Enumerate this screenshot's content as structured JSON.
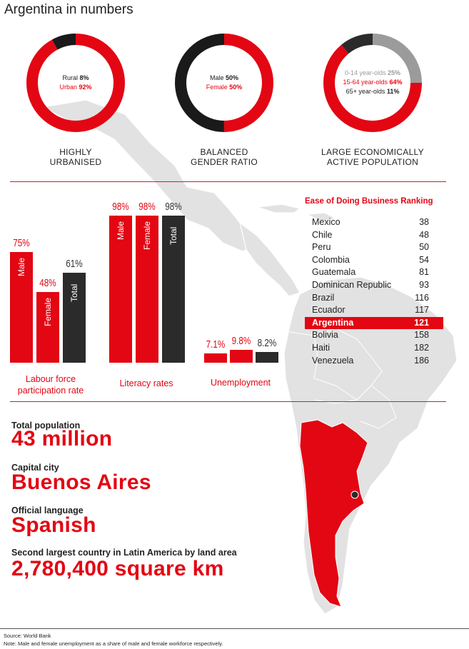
{
  "title": "Argentina in numbers",
  "colors": {
    "red": "#e30613",
    "dark": "#2b2b2b",
    "grey": "#9b9b9b",
    "map": "#e2e2e2"
  },
  "donuts": [
    {
      "caption_l1": "HIGHLY",
      "caption_l2": "URBANISED",
      "lines": [
        {
          "label": "Rural",
          "value": "8%",
          "color": "#222222"
        },
        {
          "label": "Urban",
          "value": "92%",
          "color": "#e30613"
        }
      ],
      "segments": [
        {
          "name": "Urban",
          "share": 0.92,
          "color": "#e30613"
        },
        {
          "name": "Rural",
          "share": 0.08,
          "color": "#1a1a1a"
        }
      ]
    },
    {
      "caption_l1": "BALANCED",
      "caption_l2": "GENDER RATIO",
      "lines": [
        {
          "label": "Male",
          "value": "50%",
          "color": "#222222"
        },
        {
          "label": "Female",
          "value": "50%",
          "color": "#e30613"
        }
      ],
      "segments": [
        {
          "name": "Female",
          "share": 0.5,
          "color": "#e30613"
        },
        {
          "name": "Male",
          "share": 0.5,
          "color": "#1a1a1a"
        }
      ]
    },
    {
      "caption_l1": "LARGE ECONOMICALLY",
      "caption_l2": "ACTIVE POPULATION",
      "lines": [
        {
          "label": "0-14 year-olds",
          "value": "25%",
          "color": "#9b9b9b"
        },
        {
          "label": "15-64 year-olds",
          "value": "64%",
          "color": "#e30613"
        },
        {
          "label": "65+ year-olds",
          "value": "11%",
          "color": "#222222"
        }
      ],
      "segments": [
        {
          "name": "0-14 year-olds",
          "share": 0.25,
          "color": "#9b9b9b"
        },
        {
          "name": "15-64 year-olds",
          "share": 0.64,
          "color": "#e30613"
        },
        {
          "name": "65+ year-olds",
          "share": 0.11,
          "color": "#2b2b2b"
        }
      ]
    }
  ],
  "bar_groups": [
    {
      "caption_l1": "Labour force",
      "caption_l2": "participation rate",
      "bars": [
        {
          "label": "Male",
          "value_text": "75%",
          "value": 75,
          "color": "red"
        },
        {
          "label": "Female",
          "value_text": "48%",
          "value": 48,
          "color": "red"
        },
        {
          "label": "Total",
          "value_text": "61%",
          "value": 61,
          "color": "dark"
        }
      ]
    },
    {
      "caption_l1": "Literacy rates",
      "caption_l2": "",
      "bars": [
        {
          "label": "Male",
          "value_text": "98%",
          "value": 98,
          "color": "red"
        },
        {
          "label": "Female",
          "value_text": "98%",
          "value": 98,
          "color": "red"
        },
        {
          "label": "Total",
          "value_text": "98%",
          "value": 98,
          "color": "dark"
        }
      ]
    },
    {
      "caption_l1": "Unemployment",
      "caption_l2": "",
      "bars": [
        {
          "label": "",
          "value_text": "7.1%",
          "value": 7.1,
          "color": "red"
        },
        {
          "label": "",
          "value_text": "9.8%",
          "value": 9.8,
          "color": "red"
        },
        {
          "label": "",
          "value_text": "8.2%",
          "value": 8.2,
          "color": "dark"
        }
      ]
    }
  ],
  "ranking": {
    "title": "Ease of Doing Business Ranking",
    "highlight": "Argentina",
    "rows": [
      {
        "country": "Mexico",
        "rank": "38"
      },
      {
        "country": "Chile",
        "rank": "48"
      },
      {
        "country": "Peru",
        "rank": "50"
      },
      {
        "country": "Colombia",
        "rank": "54"
      },
      {
        "country": "Guatemala",
        "rank": "81"
      },
      {
        "country": "Dominican Republic",
        "rank": "93"
      },
      {
        "country": "Brazil",
        "rank": "116"
      },
      {
        "country": "Ecuador",
        "rank": "117"
      },
      {
        "country": "Argentina",
        "rank": "121"
      },
      {
        "country": "Bolivia",
        "rank": "158"
      },
      {
        "country": "Haiti",
        "rank": "182"
      },
      {
        "country": "Venezuela",
        "rank": "186"
      }
    ]
  },
  "facts": [
    {
      "label": "Total population",
      "value": "43 million"
    },
    {
      "label": "Capital city",
      "value": "Buenos Aires"
    },
    {
      "label": "Official language",
      "value": "Spanish"
    },
    {
      "label": "Second largest country in Latin America by land area",
      "value": "2,780,400 square km"
    }
  ],
  "footer": {
    "source": "Source: World Bank",
    "note": "Note: Male and female unemployment as a share of male and female workforce respectively."
  },
  "chart_data": [
    {
      "type": "pie",
      "title": "",
      "subtitle": "HIGHLY URBANISED",
      "categories": [
        "Rural",
        "Urban"
      ],
      "values": [
        8,
        92
      ]
    },
    {
      "type": "pie",
      "title": "",
      "subtitle": "BALANCED GENDER RATIO",
      "categories": [
        "Male",
        "Female"
      ],
      "values": [
        50,
        50
      ]
    },
    {
      "type": "pie",
      "title": "",
      "subtitle": "LARGE ECONOMICALLY ACTIVE POPULATION",
      "categories": [
        "0-14 year-olds",
        "15-64 year-olds",
        "65+ year-olds"
      ],
      "values": [
        25,
        64,
        11
      ]
    },
    {
      "type": "bar",
      "title": "Labour force participation rate",
      "categories": [
        "Male",
        "Female",
        "Total"
      ],
      "values": [
        75,
        48,
        61
      ]
    },
    {
      "type": "bar",
      "title": "Literacy rates",
      "categories": [
        "Male",
        "Female",
        "Total"
      ],
      "values": [
        98,
        98,
        98
      ]
    },
    {
      "type": "bar",
      "title": "Unemployment",
      "categories": [
        "",
        "",
        ""
      ],
      "values": [
        7.1,
        9.8,
        8.2
      ]
    },
    {
      "type": "table",
      "title": "Ease of Doing Business Ranking",
      "categories": [
        "Mexico",
        "Chile",
        "Peru",
        "Colombia",
        "Guatemala",
        "Dominican Republic",
        "Brazil",
        "Ecuador",
        "Argentina",
        "Bolivia",
        "Haiti",
        "Venezuela"
      ],
      "values": [
        38,
        48,
        50,
        54,
        81,
        93,
        116,
        117,
        121,
        158,
        182,
        186
      ]
    }
  ]
}
